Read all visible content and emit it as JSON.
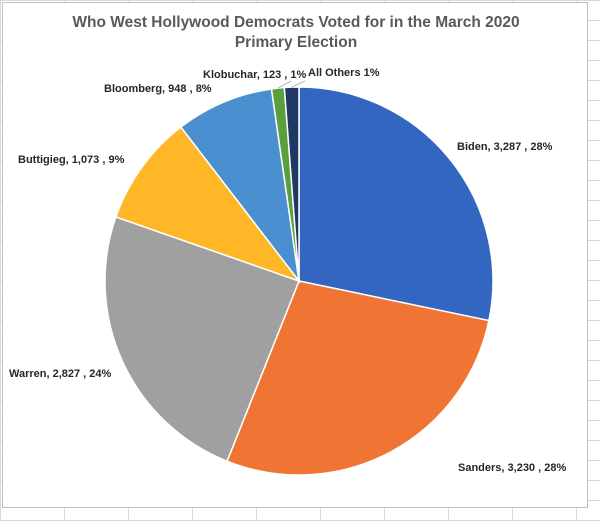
{
  "chart_data": {
    "type": "pie",
    "title_line1": "Who West Hollywood Democrats Voted for in the March 2020",
    "title_line2": "Primary Election",
    "slices": [
      {
        "name": "Biden",
        "value": 3287,
        "value_label": "3,287",
        "percent_label": "28%",
        "color": "#3366c0"
      },
      {
        "name": "Sanders",
        "value": 3230,
        "value_label": "3,230",
        "percent_label": "28%",
        "color": "#f07535"
      },
      {
        "name": "Warren",
        "value": 2827,
        "value_label": "2,827",
        "percent_label": "24%",
        "color": "#a0a0a0"
      },
      {
        "name": "Buttigieg",
        "value": 1073,
        "value_label": "1,073",
        "percent_label": "9%",
        "color": "#ffb728"
      },
      {
        "name": "Bloomberg",
        "value": 948,
        "value_label": "948",
        "percent_label": "8%",
        "color": "#4a90d0"
      },
      {
        "name": "Klobuchar",
        "value": 123,
        "value_label": "123",
        "percent_label": "1%",
        "color": "#5b9e3e"
      },
      {
        "name": "All Others",
        "value": 140,
        "value_label": "",
        "percent_label": "1%",
        "color": "#1f3864"
      }
    ],
    "legend": "none"
  }
}
